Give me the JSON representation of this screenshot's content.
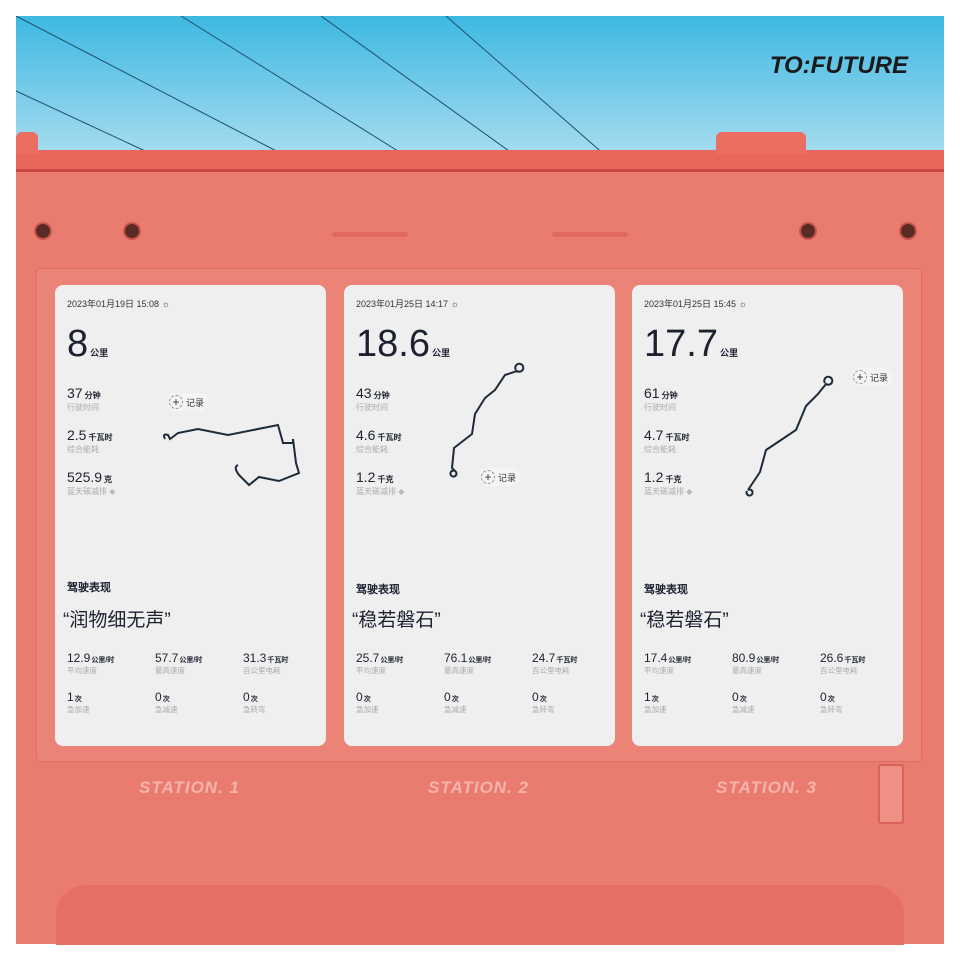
{
  "brand": "TO:FUTURE",
  "colors": {
    "body": "#ea7c6f",
    "card": "#efefef",
    "sky": "#3db8e2",
    "route": "#1d2a3a"
  },
  "record_label": "记录",
  "cards": [
    {
      "date": "2023年01月19日 15:08",
      "distance": "8",
      "distance_unit": "公里",
      "time": "37",
      "time_unit": "分钟",
      "time_label": "行驶时间",
      "energy": "2.5",
      "energy_unit": "千瓦时",
      "energy_label": "综合能耗",
      "carbon": "525.9",
      "carbon_unit": "克",
      "carbon_label": "蓝天碳减排",
      "perf_title": "驾驶表现",
      "quote": "“润物细无声”",
      "metrics": [
        {
          "v": "12.9",
          "u": "公里/时",
          "l": "平均速度"
        },
        {
          "v": "57.7",
          "u": "公里/时",
          "l": "最高速度"
        },
        {
          "v": "31.3",
          "u": "千瓦时",
          "l": "百公里电耗"
        },
        {
          "v": "1",
          "u": "次",
          "l": "急加速"
        },
        {
          "v": "0",
          "u": "次",
          "l": "急减速"
        },
        {
          "v": "0",
          "u": "次",
          "l": "急转弯"
        }
      ],
      "station": "STATION. 1"
    },
    {
      "date": "2023年01月25日 14:17",
      "distance": "18.6",
      "distance_unit": "公里",
      "time": "43",
      "time_unit": "分钟",
      "time_label": "行驶时间",
      "energy": "4.6",
      "energy_unit": "千瓦时",
      "energy_label": "综合能耗",
      "carbon": "1.2",
      "carbon_unit": "千克",
      "carbon_label": "蓝天碳减排",
      "perf_title": "驾驶表现",
      "quote": "“稳若磐石”",
      "metrics": [
        {
          "v": "25.7",
          "u": "公里/时",
          "l": "平均速度"
        },
        {
          "v": "76.1",
          "u": "公里/时",
          "l": "最高速度"
        },
        {
          "v": "24.7",
          "u": "千瓦时",
          "l": "百公里电耗"
        },
        {
          "v": "0",
          "u": "次",
          "l": "急加速"
        },
        {
          "v": "0",
          "u": "次",
          "l": "急减速"
        },
        {
          "v": "0",
          "u": "次",
          "l": "急转弯"
        }
      ],
      "station": "STATION. 2"
    },
    {
      "date": "2023年01月25日 15:45",
      "distance": "17.7",
      "distance_unit": "公里",
      "time": "61",
      "time_unit": "分钟",
      "time_label": "行驶时间",
      "energy": "4.7",
      "energy_unit": "千瓦时",
      "energy_label": "综合能耗",
      "carbon": "1.2",
      "carbon_unit": "千克",
      "carbon_label": "蓝天碳减排",
      "perf_title": "驾驶表现",
      "quote": "“稳若磐石”",
      "metrics": [
        {
          "v": "17.4",
          "u": "公里/时",
          "l": "平均速度"
        },
        {
          "v": "80.9",
          "u": "公里/时",
          "l": "最高速度"
        },
        {
          "v": "26.6",
          "u": "千瓦时",
          "l": "百公里电耗"
        },
        {
          "v": "1",
          "u": "次",
          "l": "急加速"
        },
        {
          "v": "0",
          "u": "次",
          "l": "急减速"
        },
        {
          "v": "0",
          "u": "次",
          "l": "急转弯"
        }
      ],
      "station": "STATION. 3"
    }
  ]
}
